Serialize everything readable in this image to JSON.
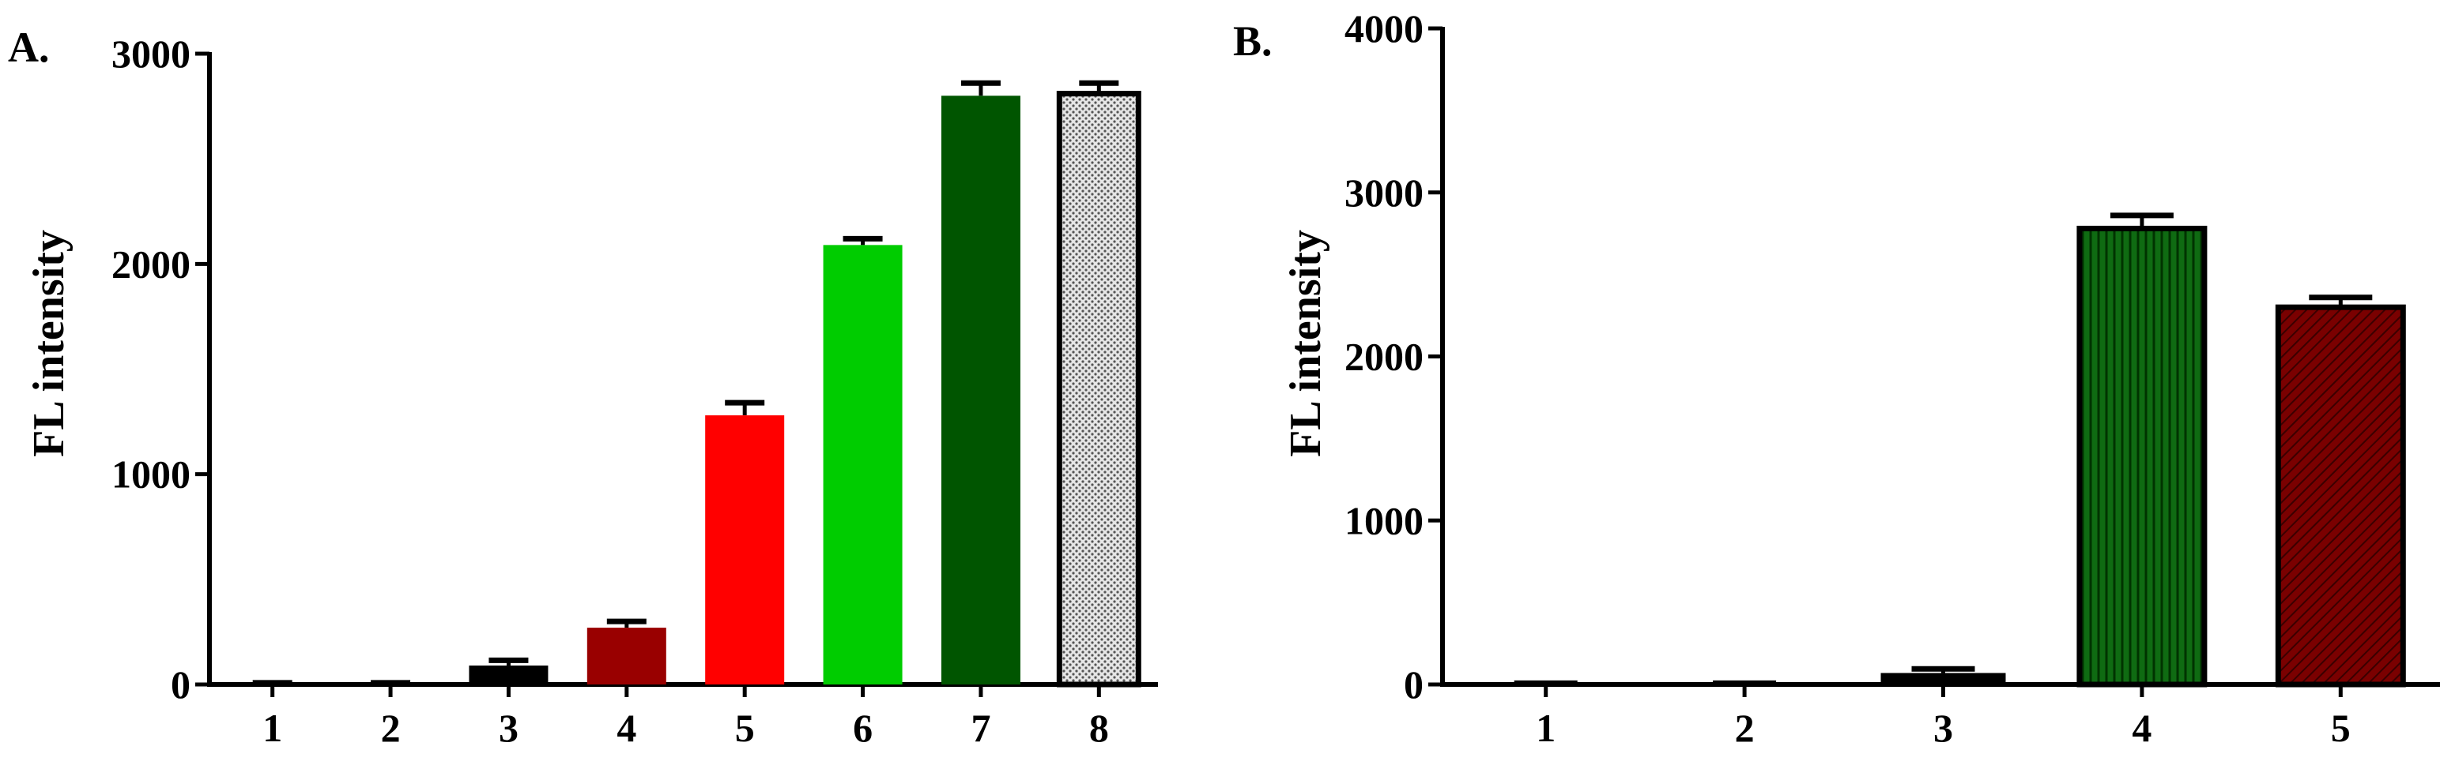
{
  "chart_data": [
    {
      "panel_label": "A.",
      "type": "bar",
      "ylabel": "FL intensity",
      "xlabel": "",
      "ylim": [
        0,
        3000
      ],
      "yticks": [
        0,
        1000,
        2000,
        3000
      ],
      "categories": [
        "1",
        "2",
        "3",
        "4",
        "5",
        "6",
        "7",
        "8"
      ],
      "values": [
        5,
        5,
        90,
        270,
        1280,
        2090,
        2800,
        2810
      ],
      "errors": [
        3,
        3,
        25,
        30,
        60,
        30,
        60,
        50
      ],
      "colors": [
        "#000000",
        "#000000",
        "#000000",
        "#990000",
        "#ff0000",
        "#00cc00",
        "#005500",
        "#c8c8c8"
      ],
      "patterns": [
        "solid",
        "solid",
        "solid",
        "solid",
        "solid",
        "solid",
        "solid",
        "dotted"
      ],
      "grid": false
    },
    {
      "panel_label": "B.",
      "type": "bar",
      "ylabel": "FL intensity",
      "xlabel": "",
      "ylim": [
        0,
        4000
      ],
      "yticks": [
        0,
        1000,
        2000,
        3000,
        4000
      ],
      "categories": [
        "1",
        "2",
        "3",
        "4",
        "5"
      ],
      "values": [
        5,
        5,
        70,
        2780,
        2300
      ],
      "errors": [
        3,
        3,
        25,
        80,
        60
      ],
      "colors": [
        "#000000",
        "#000000",
        "#000000",
        "#0a5a0a",
        "#6b0000"
      ],
      "patterns": [
        "solid",
        "solid",
        "solid",
        "vertical-lines",
        "diagonal-lines"
      ],
      "grid": false
    }
  ]
}
